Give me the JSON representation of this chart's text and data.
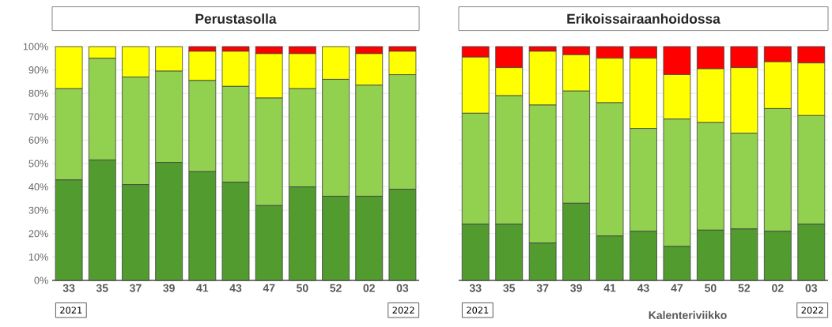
{
  "chart_data": [
    {
      "type": "bar",
      "title": "Perustasolla",
      "stacked": true,
      "grid": "y",
      "categories": [
        "33",
        "35",
        "37",
        "39",
        "41",
        "43",
        "47",
        "50",
        "52",
        "02",
        "03"
      ],
      "series": [
        {
          "color": "#529b2f",
          "values": [
            43,
            51.5,
            41,
            50.5,
            46.5,
            42,
            32,
            40,
            36,
            36,
            39
          ]
        },
        {
          "color": "#92d050",
          "values": [
            39,
            43.5,
            46,
            39,
            39,
            41,
            46,
            42,
            50,
            47.5,
            49
          ]
        },
        {
          "color": "#ffff00",
          "values": [
            18,
            5,
            13,
            10.5,
            12.5,
            15,
            19,
            15,
            14,
            13.5,
            10
          ]
        },
        {
          "color": "#ff0000",
          "values": [
            0,
            0,
            0,
            0,
            2,
            2,
            3,
            3,
            0,
            3,
            2
          ]
        }
      ],
      "ylim": [
        0,
        100
      ],
      "yticks": [
        {
          "value": 0,
          "label": "0%"
        },
        {
          "value": 10,
          "label": "10%"
        },
        {
          "value": 20,
          "label": "20%"
        },
        {
          "value": 30,
          "label": "30%"
        },
        {
          "value": 40,
          "label": "40%"
        },
        {
          "value": 50,
          "label": "50%"
        },
        {
          "value": 60,
          "label": "60%"
        },
        {
          "value": 70,
          "label": "70%"
        },
        {
          "value": 80,
          "label": "80%"
        },
        {
          "value": 90,
          "label": "90%"
        },
        {
          "value": 100,
          "label": "100%"
        }
      ],
      "annotations": [
        "2021",
        "2022"
      ]
    },
    {
      "type": "bar",
      "title": "Erikoissairaanhoidossa",
      "stacked": true,
      "grid": "y",
      "tick_labels": "x",
      "xlabel": "Kalenteriviikko",
      "categories": [
        "33",
        "35",
        "37",
        "39",
        "41",
        "43",
        "47",
        "50",
        "52",
        "02",
        "03"
      ],
      "series": [
        {
          "color": "#529b2f",
          "values": [
            24,
            24,
            16,
            33,
            19,
            21,
            14.5,
            21.5,
            22,
            21,
            24
          ]
        },
        {
          "color": "#92d050",
          "values": [
            47.5,
            55,
            59,
            48,
            57,
            44,
            54.5,
            46,
            41,
            52.5,
            46.5
          ]
        },
        {
          "color": "#ffff00",
          "values": [
            24,
            12,
            23,
            15.5,
            19,
            30,
            19,
            23,
            28,
            20,
            22.5
          ]
        },
        {
          "color": "#ff0000",
          "values": [
            4.5,
            9,
            2,
            3.5,
            5,
            5,
            12,
            9.5,
            9,
            6.5,
            7
          ]
        }
      ],
      "ylim": [
        0,
        100
      ],
      "yticks": [
        {
          "value": 0,
          "label": null
        },
        {
          "value": 10,
          "label": null
        },
        {
          "value": 20,
          "label": null
        },
        {
          "value": 30,
          "label": null
        },
        {
          "value": 40,
          "label": null
        },
        {
          "value": 50,
          "label": null
        },
        {
          "value": 60,
          "label": null
        },
        {
          "value": 70,
          "label": null
        },
        {
          "value": 80,
          "label": null
        },
        {
          "value": 90,
          "label": null
        },
        {
          "value": 100,
          "label": null
        }
      ],
      "annotations": [
        "2021",
        "2022"
      ]
    }
  ]
}
